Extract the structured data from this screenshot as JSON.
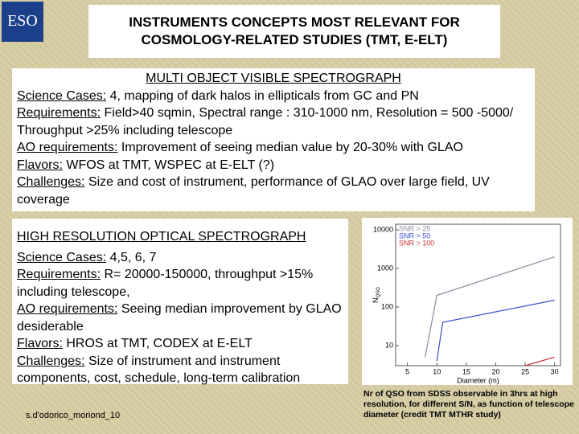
{
  "logo": "ESO",
  "title": "INSTRUMENTS CONCEPTS MOST RELEVANT FOR COSMOLOGY-RELATED STUDIES (TMT, E-ELT)",
  "sections": [
    {
      "heading": "MULTI OBJECT VISIBLE SPECTROGRAPH",
      "items": [
        {
          "label": "Science Cases:",
          "text": " 4, mapping of dark halos in ellipticals from GC and PN"
        },
        {
          "label": "Requirements:",
          "text": " Field>40 sqmin, Spectral range : 310-1000 nm, Resolution = 500 -5000/ Throughput >25% including telescope"
        },
        {
          "label": "AO requirements:",
          "text": " Improvement of seeing median value by 20-30% with GLAO"
        },
        {
          "label": "Flavors:",
          "text": " WFOS at TMT, WSPEC at E-ELT (?)"
        },
        {
          "label": "Challenges:",
          "text": " Size and cost of instrument, performance of GLAO over large field, UV coverage"
        }
      ]
    },
    {
      "heading": "HIGH RESOLUTION OPTICAL SPECTROGRAPH",
      "items": [
        {
          "label": "Science Cases:",
          "text": " 4,5, 6, 7"
        },
        {
          "label": "Requirements:",
          "text": " R= 20000-150000, throughput >15% including telescope,"
        },
        {
          "label": "AO requirements:",
          "text": " Seeing median improvement by GLAO desiderable"
        },
        {
          "label": "Flavors:",
          "text": " HROS at TMT, CODEX at E-ELT"
        },
        {
          "label": "Challenges:",
          "text": " Size of instrument and instrument components, cost, schedule, long-term calibration"
        }
      ]
    }
  ],
  "chart_data": {
    "type": "line",
    "x_label": "Diameter (m)",
    "y_label": "N",
    "y_label_sub": "QSO",
    "log_y": true,
    "xlim": [
      3,
      31
    ],
    "ylim": [
      3,
      14000
    ],
    "xticks": [
      5,
      10,
      15,
      20,
      25,
      30
    ],
    "yticks": [
      10,
      100,
      1000,
      10000
    ],
    "series": [
      {
        "name": "SNR > 25",
        "color": "#8a8aa0",
        "x": [
          8,
          10,
          30
        ],
        "values": [
          5,
          200,
          2000
        ]
      },
      {
        "name": "SNR > 50",
        "color": "#3a4fd0",
        "x": [
          10,
          11,
          30
        ],
        "values": [
          4,
          40,
          150
        ]
      },
      {
        "name": "SNR > 100",
        "color": "#d03030",
        "x": [
          25,
          30
        ],
        "values": [
          3,
          5
        ]
      }
    ]
  },
  "caption": "Nr of QSO from SDSS observable in 3hrs at high resolution, for different S/N, as function of telescope diameter (credit TMT MTHR study)",
  "footer": "s.d'odorico_moriond_10"
}
